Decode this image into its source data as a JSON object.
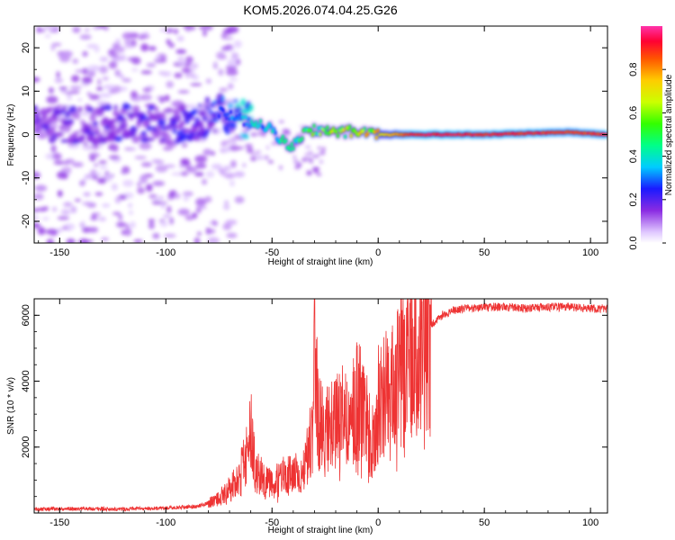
{
  "title": "KOM5.2026.074.04.25.G26",
  "chart_data": [
    {
      "type": "heatmap",
      "title": "KOM5.2026.074.04.25.G26",
      "xlabel": "Height of straight line (km)",
      "ylabel": "Frequency (Hz)",
      "xlim": [
        -162,
        108
      ],
      "ylim": [
        -25,
        25
      ],
      "xticks": [
        -150,
        -100,
        -50,
        0,
        50,
        100
      ],
      "yticks": [
        -20,
        -10,
        0,
        10,
        20
      ],
      "colorbar": {
        "label": "Normalized spectral amplitude",
        "range": [
          0,
          1
        ],
        "ticks": [
          0.0,
          0.2,
          0.4,
          0.6,
          0.8
        ],
        "tick_labels": [
          "0.0",
          "0.2",
          "0.4",
          "0.6",
          "0.8"
        ]
      },
      "ridge": {
        "description_points": [
          {
            "x": -160,
            "freq": 3,
            "amp": 0.15
          },
          {
            "x": -140,
            "freq": 2,
            "amp": 0.15
          },
          {
            "x": -120,
            "freq": 3,
            "amp": 0.18
          },
          {
            "x": -100,
            "freq": 2,
            "amp": 0.18
          },
          {
            "x": -85,
            "freq": 3,
            "amp": 0.2
          },
          {
            "x": -75,
            "freq": 5,
            "amp": 0.25
          },
          {
            "x": -68,
            "freq": 4,
            "amp": 0.3
          },
          {
            "x": -60,
            "freq": 3,
            "amp": 0.35
          },
          {
            "x": -50,
            "freq": 1,
            "amp": 0.4
          },
          {
            "x": -42,
            "freq": -3,
            "amp": 0.45
          },
          {
            "x": -33,
            "freq": 1,
            "amp": 0.5
          },
          {
            "x": -20,
            "freq": 0.5,
            "amp": 0.6
          },
          {
            "x": -8,
            "freq": 1,
            "amp": 0.65
          },
          {
            "x": 0,
            "freq": 0,
            "amp": 0.7
          },
          {
            "x": 20,
            "freq": 0,
            "amp": 0.95
          },
          {
            "x": 50,
            "freq": 0,
            "amp": 0.92
          },
          {
            "x": 90,
            "freq": 0.5,
            "amp": 0.9
          },
          {
            "x": 108,
            "freq": 0,
            "amp": 0.9
          }
        ]
      }
    },
    {
      "type": "line",
      "xlabel": "Height of straight line (km)",
      "ylabel": "SNR (10 * v/v)",
      "xlim": [
        -162,
        108
      ],
      "ylim": [
        0,
        6500
      ],
      "xticks": [
        -150,
        -100,
        -50,
        0,
        50,
        100
      ],
      "yticks": [
        2000,
        4000,
        6000
      ],
      "color": "#ee3333",
      "series": [
        {
          "name": "SNR",
          "x": [
            -162,
            -140,
            -120,
            -100,
            -85,
            -78,
            -72,
            -66,
            -62,
            -60,
            -58,
            -55,
            -50,
            -45,
            -40,
            -35,
            -31,
            -30,
            -28,
            -25,
            -20,
            -15,
            -10,
            -5,
            -3,
            0,
            5,
            10,
            15,
            20,
            25,
            30,
            35,
            40,
            50,
            60,
            70,
            80,
            90,
            100,
            108
          ],
          "values": [
            120,
            130,
            120,
            150,
            200,
            350,
            600,
            1000,
            1700,
            2600,
            1300,
            1100,
            900,
            1100,
            1200,
            1300,
            2500,
            4800,
            2800,
            2400,
            2800,
            3100,
            3400,
            3000,
            2000,
            3300,
            3800,
            4300,
            4800,
            5300,
            5700,
            6000,
            6150,
            6200,
            6250,
            6250,
            6200,
            6250,
            6250,
            6200,
            6200
          ]
        }
      ]
    }
  ]
}
